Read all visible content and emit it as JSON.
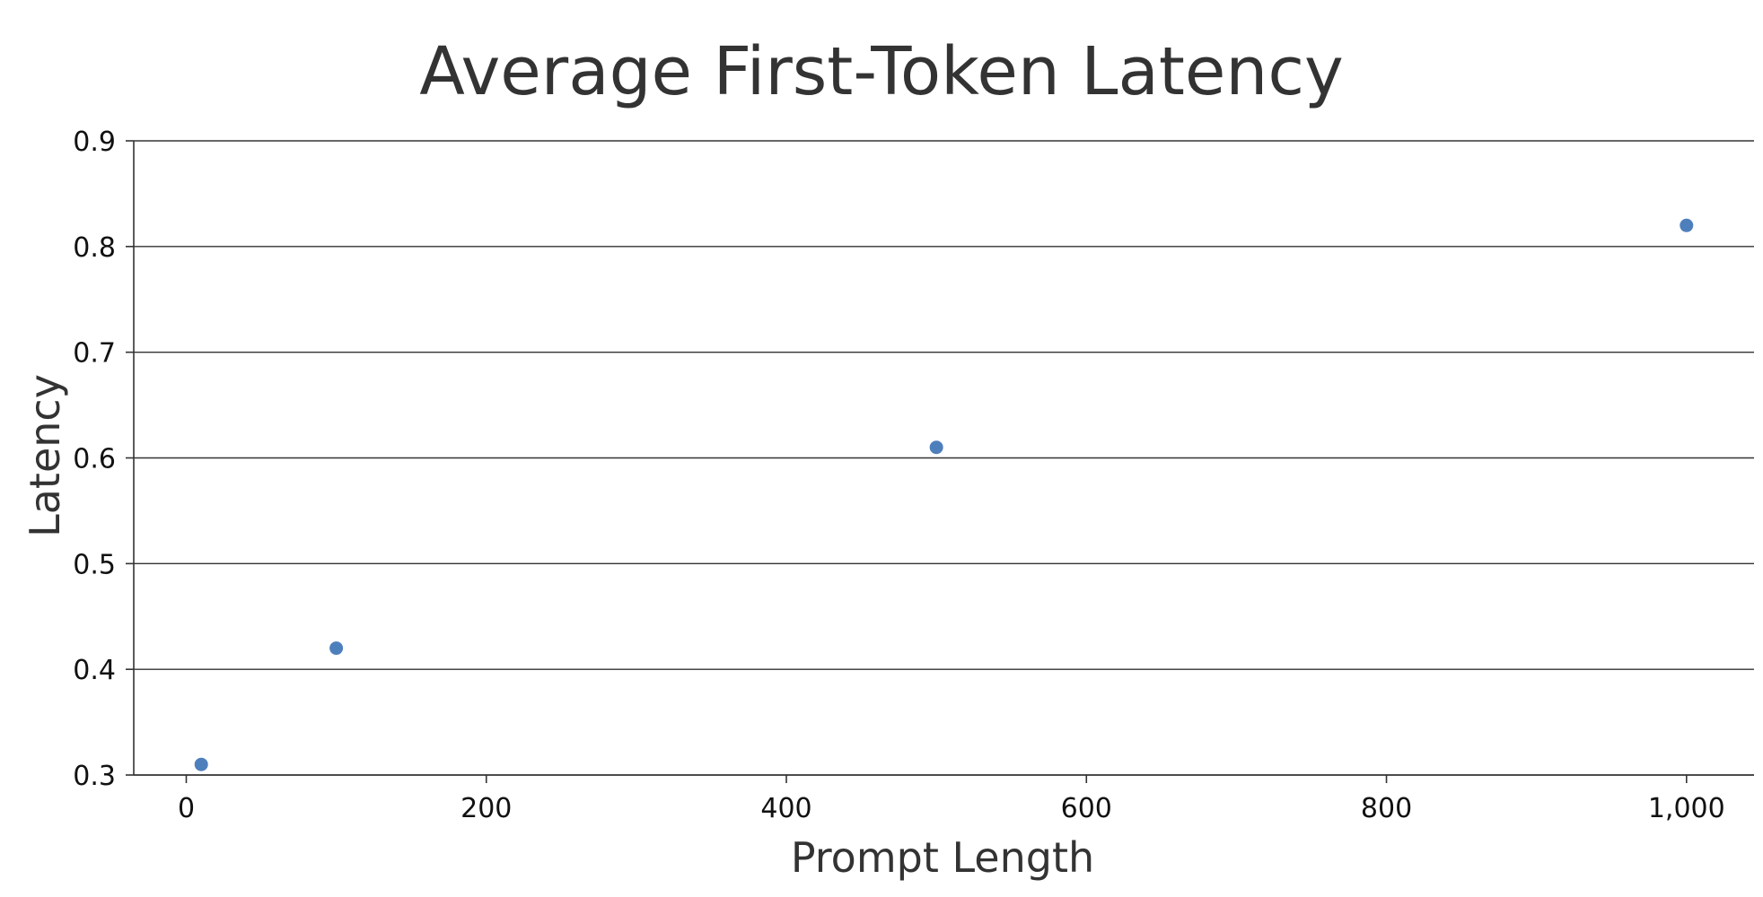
{
  "chart_data": {
    "type": "scatter",
    "title": "Average First-Token Latency",
    "xlabel": "Prompt Length",
    "ylabel": "Latency",
    "xlim": [
      -35,
      1045
    ],
    "ylim": [
      0.3,
      0.9
    ],
    "x_ticks": [
      0,
      200,
      400,
      600,
      800,
      1000
    ],
    "x_tick_labels": [
      "0",
      "200",
      "400",
      "600",
      "800",
      "1,000"
    ],
    "y_ticks": [
      0.3,
      0.4,
      0.5,
      0.6,
      0.7,
      0.8,
      0.9
    ],
    "y_tick_labels": [
      "0.3",
      "0.4",
      "0.5",
      "0.6",
      "0.7",
      "0.8",
      "0.9"
    ],
    "grid": true,
    "series": [
      {
        "color": "#4e7fbd",
        "points": [
          {
            "x": 10,
            "y": 0.31
          },
          {
            "x": 100,
            "y": 0.42
          },
          {
            "x": 500,
            "y": 0.61
          },
          {
            "x": 1000,
            "y": 0.82
          }
        ]
      }
    ]
  }
}
